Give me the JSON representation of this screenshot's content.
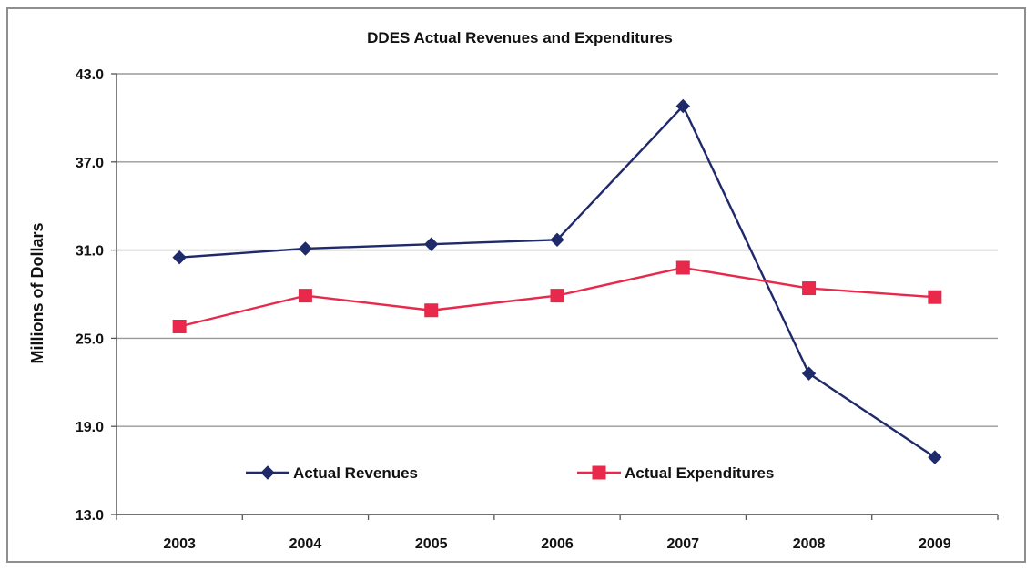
{
  "chart_data": {
    "type": "line",
    "title": "DDES Actual Revenues and Expenditures",
    "xlabel": "",
    "ylabel": "Millions of Dollars",
    "categories": [
      "2003",
      "2004",
      "2005",
      "2006",
      "2007",
      "2008",
      "2009"
    ],
    "ylim": [
      13.0,
      43.0
    ],
    "yticks": [
      "43.0",
      "37.0",
      "31.0",
      "25.0",
      "19.0",
      "13.0"
    ],
    "ytick_values": [
      43.0,
      37.0,
      31.0,
      25.0,
      19.0,
      13.0
    ],
    "grid": true,
    "legend_position": "lower-center",
    "series": [
      {
        "name": "Actual Revenues",
        "color": "#1f2a6b",
        "marker": "diamond",
        "values": [
          30.5,
          31.1,
          31.4,
          31.7,
          40.8,
          22.6,
          16.9
        ]
      },
      {
        "name": "Actual Expenditures",
        "color": "#e8294b",
        "marker": "square",
        "values": [
          25.8,
          27.9,
          26.9,
          27.9,
          29.8,
          28.4,
          27.8
        ]
      }
    ]
  }
}
